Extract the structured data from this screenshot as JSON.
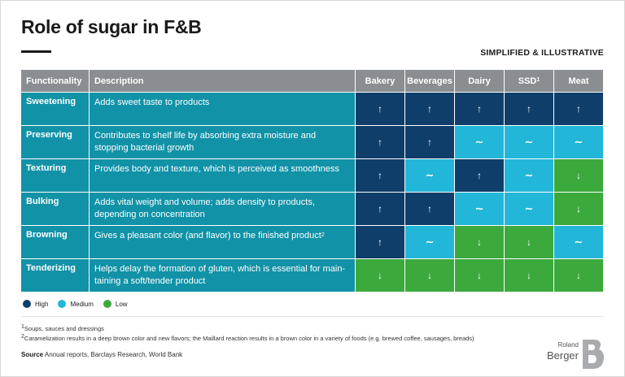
{
  "title": "Role of sugar in F&B",
  "tag": "SIMPLIFIED & ILLUSTRATIVE",
  "table": {
    "header": {
      "functionality": "Functionality",
      "description": "Description",
      "categories": [
        {
          "label": "Bakery",
          "sup": ""
        },
        {
          "label": "Beverages",
          "sup": ""
        },
        {
          "label": "Dairy",
          "sup": ""
        },
        {
          "label": "SSD",
          "sup": "1"
        },
        {
          "label": "Meat",
          "sup": ""
        }
      ]
    },
    "rows": [
      {
        "functionality": "Sweetening",
        "description": "Adds sweet taste to products",
        "sup": "",
        "levels": [
          "high",
          "high",
          "high",
          "high",
          "high"
        ]
      },
      {
        "functionality": "Preserving",
        "description": "Contributes to shelf life by absorbing extra moisture and stopping bacterial growth",
        "sup": "",
        "levels": [
          "high",
          "high",
          "medium",
          "medium",
          "medium"
        ]
      },
      {
        "functionality": "Texturing",
        "description": "Provides body and texture, which is perceived as smoothness",
        "sup": "",
        "levels": [
          "high",
          "medium",
          "high",
          "medium",
          "low"
        ]
      },
      {
        "functionality": "Bulking",
        "description": "Adds vital weight and volume; adds density to products, depending on concentration",
        "sup": "",
        "levels": [
          "high",
          "high",
          "medium",
          "medium",
          "low"
        ]
      },
      {
        "functionality": "Browning",
        "description": "Gives a pleasant color (and flavor) to the finished product",
        "sup": "2",
        "levels": [
          "high",
          "medium",
          "low",
          "low",
          "medium"
        ]
      },
      {
        "functionality": "Tenderizing",
        "description": "Helps delay the formation of gluten, which is essential for main-taining a soft/tender product",
        "sup": "",
        "levels": [
          "low",
          "low",
          "low",
          "low",
          "low"
        ]
      }
    ]
  },
  "legend": [
    {
      "key": "high",
      "label": "High",
      "color": "#0f3e6b"
    },
    {
      "key": "medium",
      "label": "Medium",
      "color": "#22b6d8"
    },
    {
      "key": "low",
      "label": "Low",
      "color": "#3ca93c"
    }
  ],
  "footnotes": [
    {
      "num": "1",
      "text": "Soups, sauces and dressings"
    },
    {
      "num": "2",
      "text": "Caramelization results in a deep brown color and new flavors; the Maillard reaction results in a brown color in a variety of foods (e.g. brewed coffee, sausages, breads)"
    }
  ],
  "source": {
    "label": "Source",
    "text": "Annual reports, Barclays Research, World Bank"
  },
  "logo": {
    "line1": "Roland",
    "line2": "Berger"
  }
}
